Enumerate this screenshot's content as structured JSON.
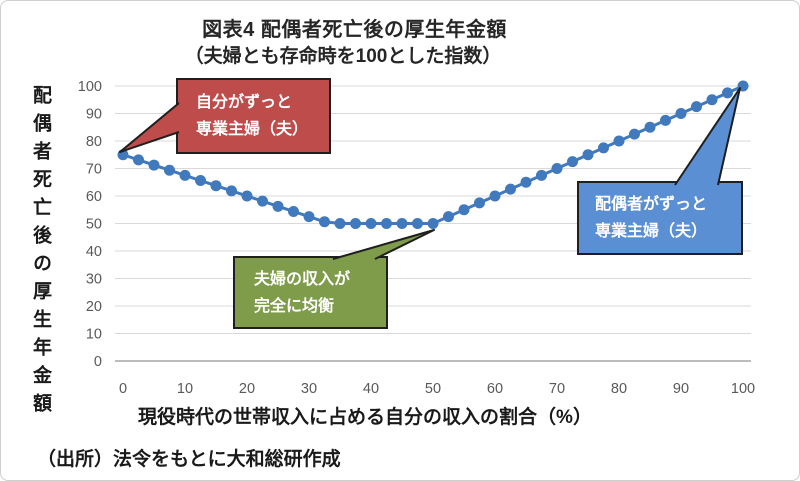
{
  "title": "図表4 配偶者死亡後の厚生年金額",
  "subtitle": "（夫婦とも存命時を100とした指数）",
  "y_axis_title": "配偶者死亡後の厚生年金額",
  "x_axis_title": "現役時代の世帯収入に占める自分の収入の割合（%）",
  "source": "（出所）法令をもとに大和総研作成",
  "colors": {
    "line": "#4179BD",
    "grid": "#D9D9D9",
    "axis": "#A6A6A6",
    "tick_text": "#595959",
    "callout_border": "#1F1F1F",
    "callout_red": "#BE4C4B",
    "callout_green": "#7E9C49",
    "callout_blue": "#5B8FD4"
  },
  "annotations": {
    "red": {
      "line1": "自分がずっと",
      "line2": "専業主婦（夫）",
      "points_to": {
        "x": 0,
        "y": 75
      }
    },
    "green": {
      "line1": "夫婦の収入が",
      "line2": "完全に均衡",
      "points_to": {
        "x": 50,
        "y": 50
      }
    },
    "blue": {
      "line1": "配偶者がずっと",
      "line2": "専業主婦（夫）",
      "points_to": {
        "x": 100,
        "y": 100
      }
    }
  },
  "chart_data": {
    "type": "line",
    "title": "図表4 配偶者死亡後の厚生年金額（夫婦とも存命時を100とした指数）",
    "xlabel": "現役時代の世帯収入に占める自分の収入の割合（%）",
    "ylabel": "配偶者死亡後の厚生年金額",
    "xlim": [
      0,
      100
    ],
    "ylim": [
      0,
      100
    ],
    "x_ticks": [
      0,
      10,
      20,
      30,
      40,
      50,
      60,
      70,
      80,
      90,
      100
    ],
    "y_ticks": [
      0,
      10,
      20,
      30,
      40,
      50,
      60,
      70,
      80,
      90,
      100
    ],
    "grid": "horizontal",
    "legend": "none",
    "x": [
      0,
      2.5,
      5,
      7.5,
      10,
      12.5,
      15,
      17.5,
      20,
      22.5,
      25,
      27.5,
      30,
      32.5,
      35,
      37.5,
      40,
      42.5,
      45,
      47.5,
      50,
      52.5,
      55,
      57.5,
      60,
      62.5,
      65,
      67.5,
      70,
      72.5,
      75,
      77.5,
      80,
      82.5,
      85,
      87.5,
      90,
      92.5,
      95,
      97.5,
      100
    ],
    "y": [
      75,
      73.125,
      71.25,
      69.375,
      67.5,
      65.625,
      63.75,
      61.875,
      60,
      58.125,
      56.25,
      54.375,
      52.5,
      50.625,
      50,
      50,
      50,
      50,
      50,
      50,
      50,
      52.5,
      55,
      57.5,
      60,
      62.5,
      65,
      67.5,
      70,
      72.5,
      75,
      77.5,
      80,
      82.5,
      85,
      87.5,
      90,
      92.5,
      95,
      97.5,
      100
    ]
  }
}
